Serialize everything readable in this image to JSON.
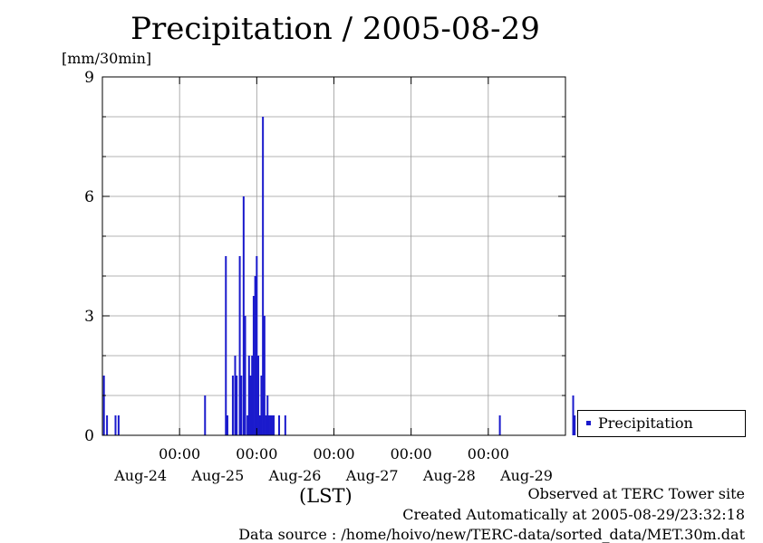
{
  "chart_data": {
    "type": "bar",
    "title": "Precipitation / 2005-08-29",
    "ylabel": "[mm/30min]",
    "xlabel": "(LST)",
    "ylim": [
      0,
      9
    ],
    "yticks": [
      "0",
      "3",
      "6",
      "9"
    ],
    "xlim_days": [
      0,
      6
    ],
    "xticks": [
      {
        "day": 1,
        "time": "00:00",
        "date": "Aug-24"
      },
      {
        "day": 2,
        "time": "00:00",
        "date": "Aug-25"
      },
      {
        "day": 3,
        "time": "00:00",
        "date": "Aug-26"
      },
      {
        "day": 4,
        "time": "00:00",
        "date": "Aug-27"
      },
      {
        "day": 5,
        "time": "00:00",
        "date": "Aug-28"
      },
      {
        "day": 6,
        "time": "",
        "date": "Aug-29"
      }
    ],
    "grid": true,
    "legend_position": "right",
    "series": [
      {
        "name": "Precipitation",
        "color": "#1a1acc",
        "x_days": [
          0.02,
          0.06,
          0.17,
          0.21,
          1.33,
          1.6,
          1.62,
          1.69,
          1.72,
          1.74,
          1.78,
          1.8,
          1.83,
          1.85,
          1.88,
          1.9,
          1.92,
          1.94,
          1.96,
          1.98,
          2.0,
          2.02,
          2.04,
          2.06,
          2.08,
          2.1,
          2.12,
          2.14,
          2.16,
          2.18,
          2.2,
          2.22,
          2.29,
          2.37,
          5.15,
          6.1,
          6.12
        ],
        "values": [
          1.5,
          0.5,
          0.5,
          0.5,
          1.0,
          4.5,
          0.5,
          1.5,
          2.0,
          1.5,
          4.5,
          1.5,
          6.0,
          3.0,
          0.5,
          2.0,
          1.5,
          2.0,
          3.5,
          4.0,
          4.5,
          2.0,
          0.5,
          1.5,
          8.0,
          3.0,
          0.5,
          1.0,
          0.5,
          0.5,
          0.5,
          0.5,
          0.5,
          0.5,
          0.5,
          1.0,
          0.5
        ]
      }
    ]
  },
  "footer": {
    "line1": "Observed at TERC Tower site",
    "line2": "Created Automatically at 2005-08-29/23:32:18",
    "line3": "Data source : /home/hoivo/new/TERC-data/sorted_data/MET.30m.dat"
  }
}
